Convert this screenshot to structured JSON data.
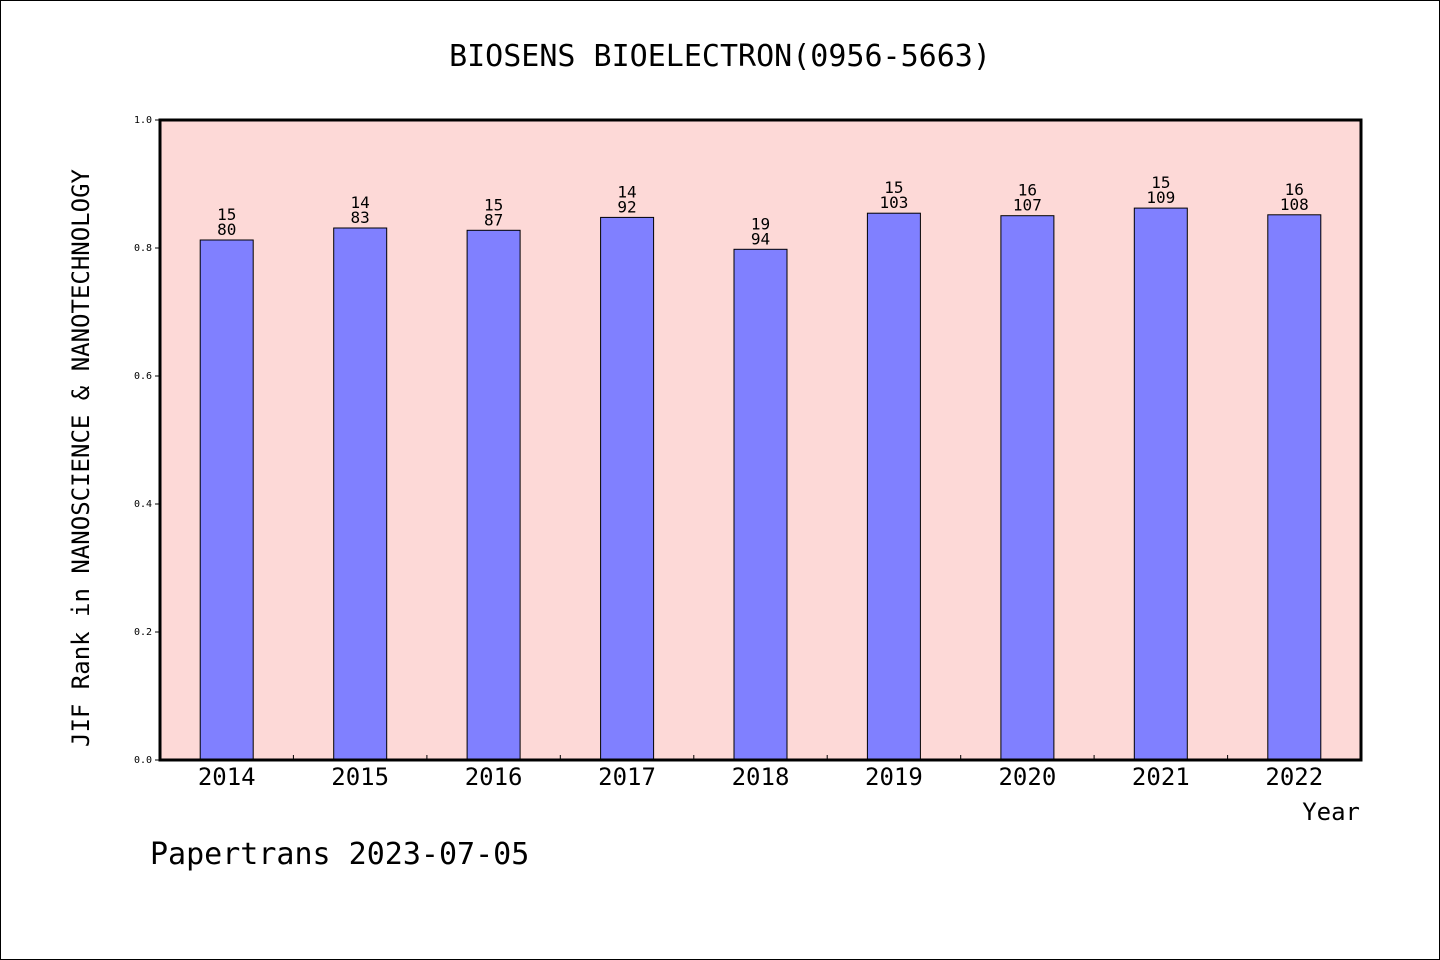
{
  "chart_data": {
    "type": "bar",
    "title": "BIOSENS BIOELECTRON(0956-5663)",
    "xlabel": "Year",
    "ylabel": "JIF Rank in NANOSCIENCE & NANOTECHNOLOGY",
    "ylim": [
      0,
      1.0
    ],
    "yticks": [
      "0.0",
      "0.2",
      "0.4",
      "0.6",
      "0.8",
      "1.0"
    ],
    "categories": [
      "2014",
      "2015",
      "2016",
      "2017",
      "2018",
      "2019",
      "2020",
      "2021",
      "2022"
    ],
    "values": [
      0.8125,
      0.8313,
      0.8276,
      0.8478,
      0.7979,
      0.8544,
      0.8505,
      0.8624,
      0.8519
    ],
    "rank_labels": [
      "15",
      "14",
      "15",
      "14",
      "19",
      "15",
      "16",
      "15",
      "16"
    ],
    "total_labels": [
      "80",
      "83",
      "87",
      "92",
      "94",
      "103",
      "107",
      "109",
      "108"
    ],
    "grid": false,
    "colors": {
      "plot_background": "#fdd9d7",
      "bar_fill": "#8080ff",
      "bar_stroke": "#000000"
    }
  },
  "footer": {
    "text": "Papertrans 2023-07-05"
  }
}
